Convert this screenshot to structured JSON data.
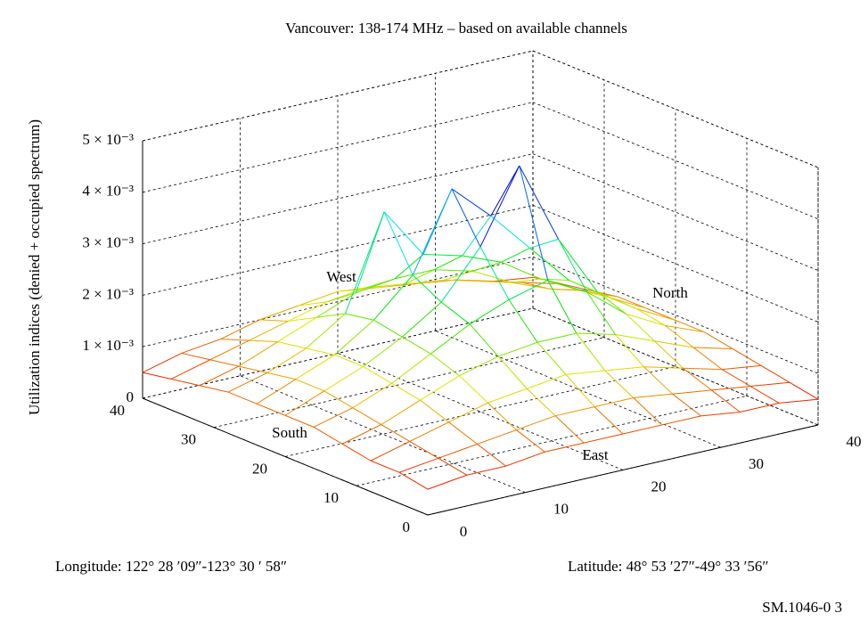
{
  "chart_data": {
    "type": "surface",
    "title": "Vancouver: 138-174 MHz – based on available channels",
    "xlabel": "Longitude: 122° 28  ′09″-123° 30 ′ 58″",
    "ylabel": "Latitude: 48° 53  ′27″-49° 33 ′56″",
    "zlabel": "Utilization indices (denied + occupied spectrum)",
    "annotations": [
      "West",
      "North",
      "South",
      "East"
    ],
    "x": [
      0,
      4,
      8,
      12,
      16,
      20,
      24,
      28,
      32,
      36,
      40
    ],
    "y": [
      0,
      4,
      8,
      12,
      16,
      20,
      24,
      28,
      32,
      36,
      40
    ],
    "z": [
      [
        0.0005,
        0.0006,
        0.0006,
        0.0007,
        0.0007,
        0.0007,
        0.0007,
        0.0007,
        0.0006,
        0.0006,
        0.0005
      ],
      [
        0.0006,
        0.0007,
        0.0008,
        0.0009,
        0.001,
        0.001,
        0.001,
        0.0009,
        0.0008,
        0.0007,
        0.0006
      ],
      [
        0.0006,
        0.0008,
        0.001,
        0.0012,
        0.0013,
        0.0014,
        0.0013,
        0.0012,
        0.001,
        0.0008,
        0.0007
      ],
      [
        0.0007,
        0.0009,
        0.0012,
        0.0015,
        0.0017,
        0.0018,
        0.0018,
        0.0016,
        0.0013,
        0.001,
        0.0008
      ],
      [
        0.0008,
        0.001,
        0.0013,
        0.0017,
        0.0021,
        0.0024,
        0.0026,
        0.0022,
        0.0016,
        0.0012,
        0.0009
      ],
      [
        0.0008,
        0.0011,
        0.0014,
        0.0018,
        0.0023,
        0.0032,
        0.0046,
        0.003,
        0.0018,
        0.0013,
        0.0009
      ],
      [
        0.0008,
        0.0011,
        0.0014,
        0.0019,
        0.0026,
        0.0041,
        0.0034,
        0.0026,
        0.0018,
        0.0013,
        0.0009
      ],
      [
        0.0008,
        0.001,
        0.0013,
        0.0018,
        0.0036,
        0.0026,
        0.0024,
        0.0021,
        0.0016,
        0.0012,
        0.0009
      ],
      [
        0.0007,
        0.0009,
        0.0012,
        0.0015,
        0.0018,
        0.0019,
        0.0019,
        0.0017,
        0.0013,
        0.001,
        0.0008
      ],
      [
        0.0006,
        0.0008,
        0.001,
        0.0012,
        0.0014,
        0.0015,
        0.0014,
        0.0013,
        0.0011,
        0.0009,
        0.0007
      ],
      [
        0.0005,
        0.0007,
        0.0008,
        0.001,
        0.0011,
        0.0012,
        0.0011,
        0.001,
        0.0009,
        0.0007,
        0.0006
      ]
    ],
    "xlim": [
      0,
      40
    ],
    "ylim": [
      0,
      40
    ],
    "zlim": [
      0,
      0.005
    ],
    "xticks": [
      0,
      10,
      20,
      30,
      40
    ],
    "yticks": [
      0,
      10,
      20,
      30,
      40
    ],
    "zticks": [
      0,
      {
        "value": 0.001,
        "label": "1 × 10⁻³"
      },
      {
        "value": 0.002,
        "label": "2 × 10⁻³"
      },
      {
        "value": 0.003,
        "label": "3 × 10⁻³"
      },
      {
        "value": 0.004,
        "label": "4 × 10⁻³"
      },
      {
        "value": 0.005,
        "label": "5 × 10⁻³"
      }
    ],
    "grid": true
  },
  "footer": "SM.1046-0 3"
}
